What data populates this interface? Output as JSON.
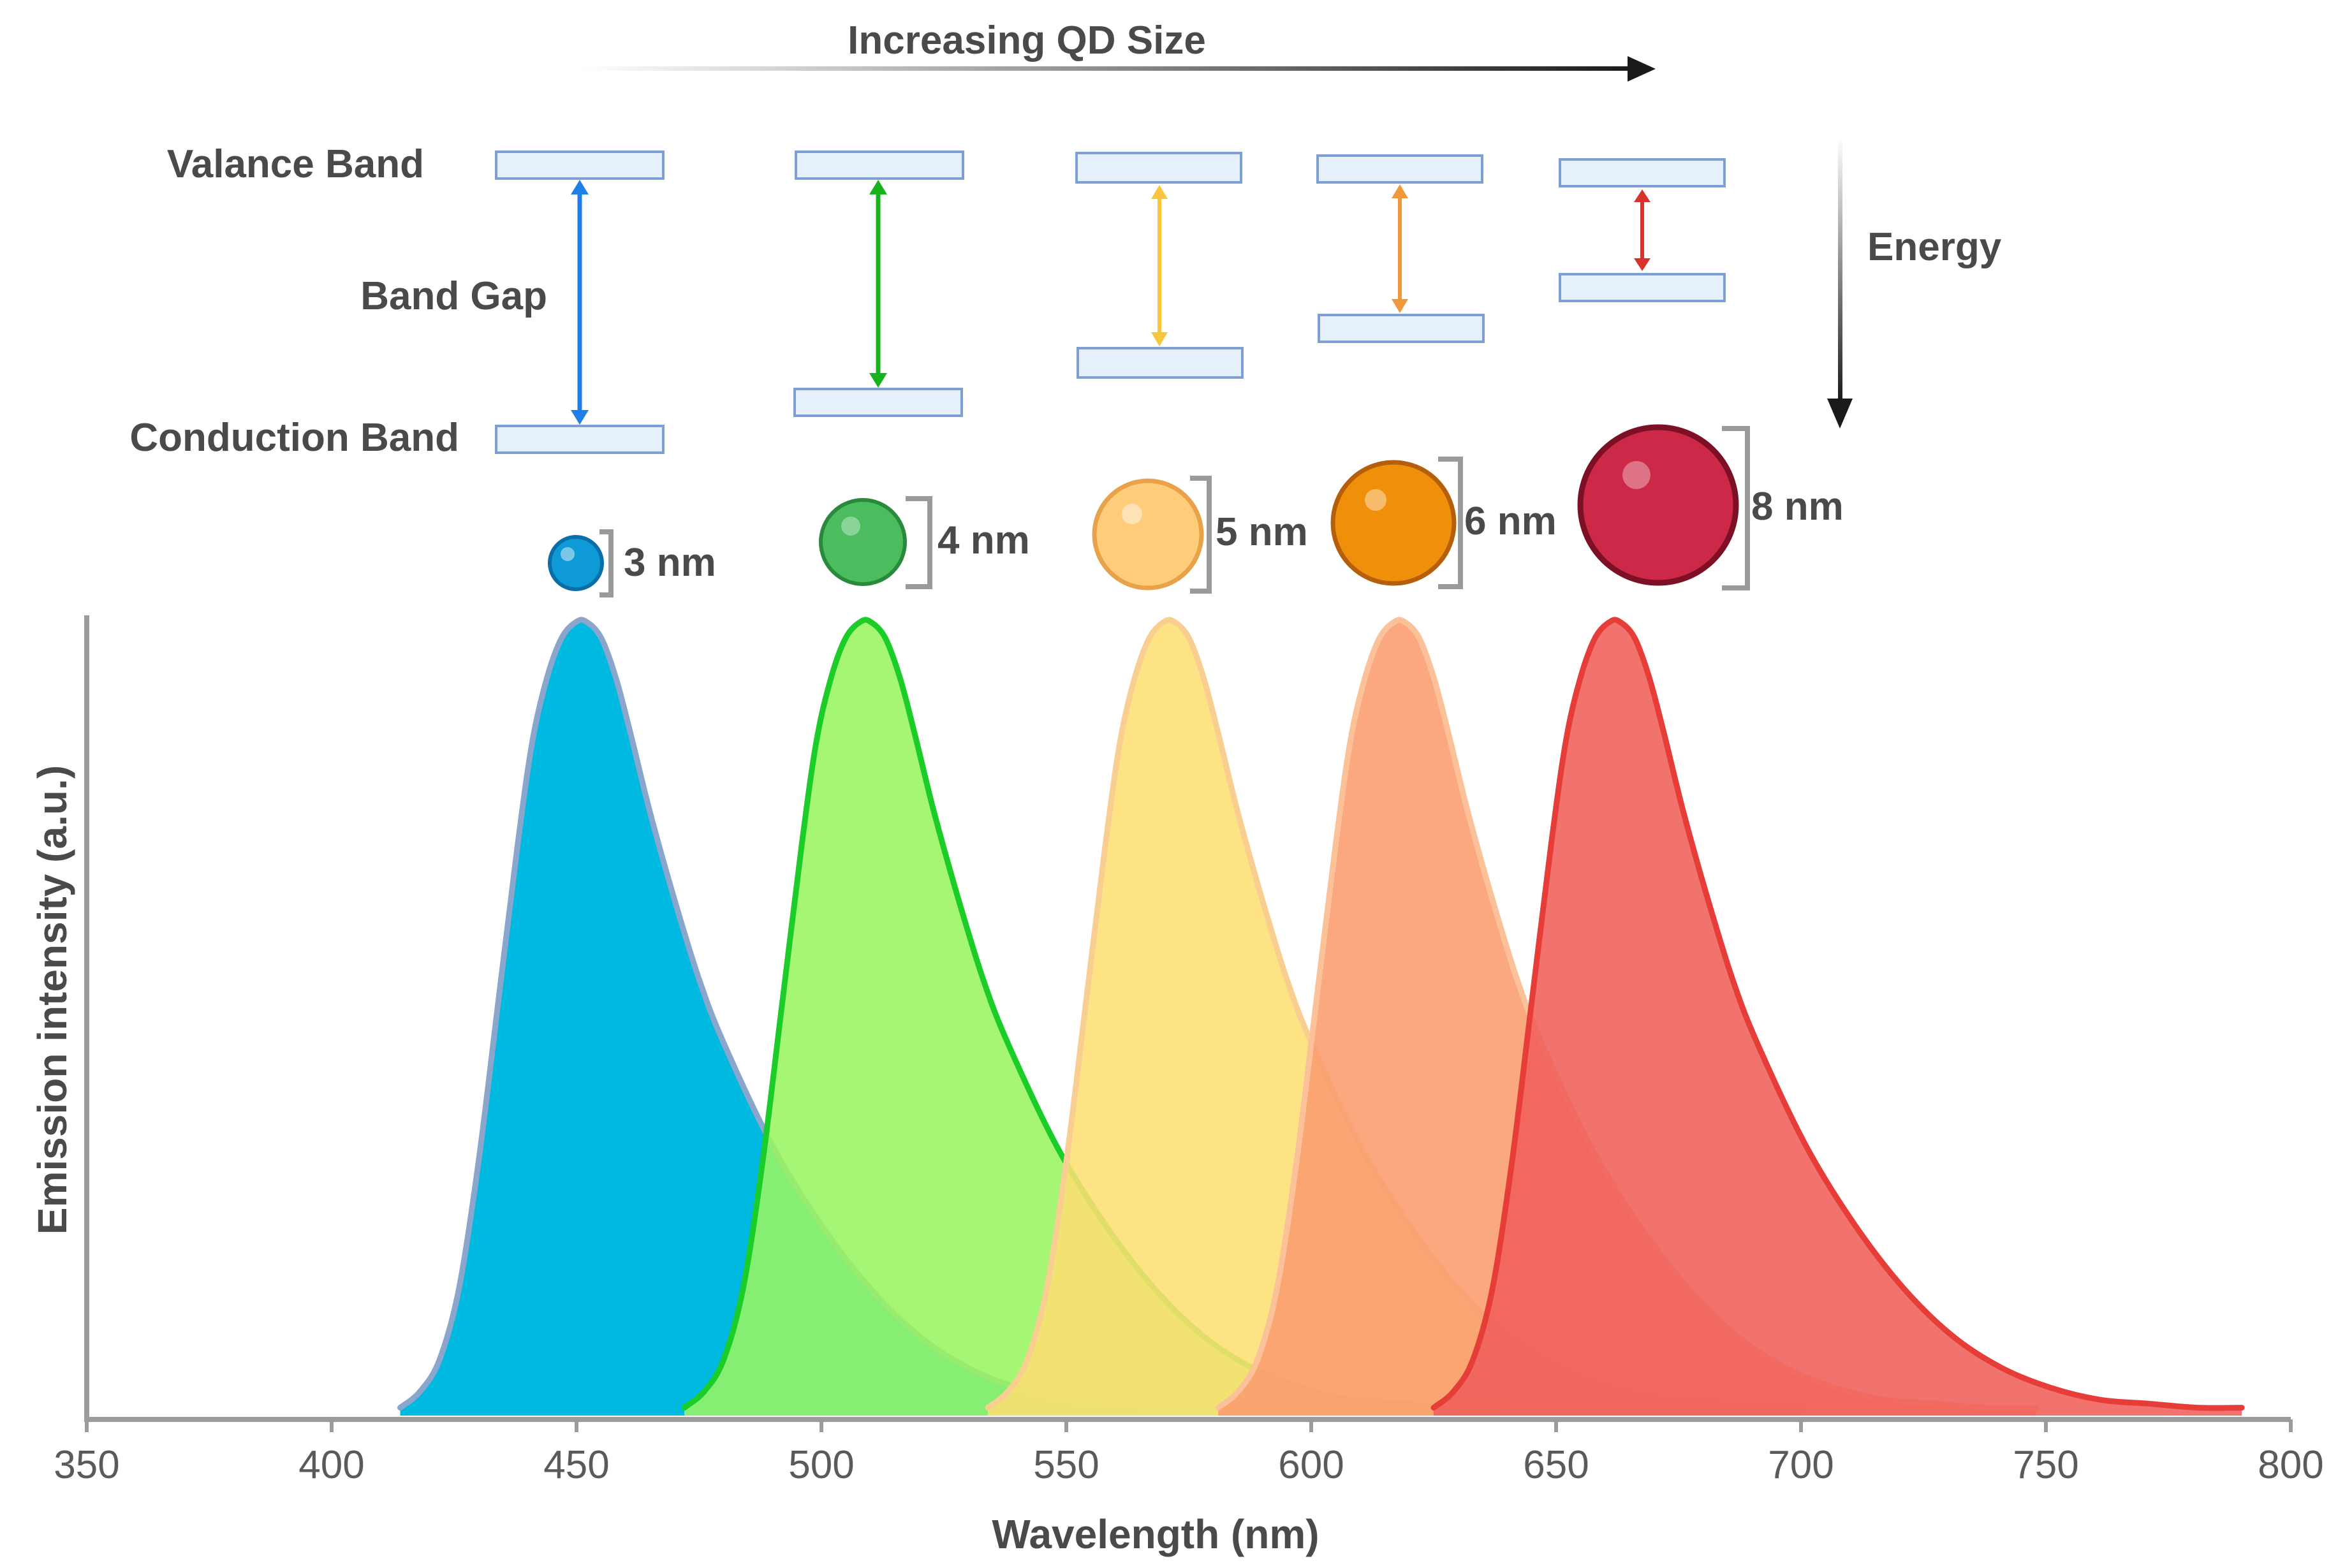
{
  "chart_data": {
    "type": "area",
    "title": "",
    "xlabel": "Wavelength (nm)",
    "ylabel": "Emission intensity (a.u.)",
    "xlim": [
      350,
      800
    ],
    "xticks": [
      350,
      400,
      450,
      500,
      550,
      600,
      650,
      700,
      750,
      800
    ],
    "xtick_labels": [
      "350",
      "400",
      "450",
      "500",
      "550",
      "600",
      "650",
      "700",
      "750",
      "800"
    ],
    "series": [
      {
        "name": "3 nm",
        "peak": 452,
        "range": [
          414,
          580
        ],
        "fill": "#00b9e0",
        "stroke": "#8aa6cc",
        "x": [
          414,
          418,
          422,
          426,
          430,
          434,
          438,
          441,
          444,
          447,
          450,
          452,
          455,
          458,
          461,
          465,
          470,
          475,
          480,
          490,
          500,
          510,
          520,
          530,
          540,
          550,
          560,
          570,
          580
        ],
        "y": [
          0.01,
          0.03,
          0.07,
          0.16,
          0.32,
          0.52,
          0.72,
          0.85,
          0.93,
          0.98,
          1.0,
          1.0,
          0.98,
          0.93,
          0.86,
          0.76,
          0.65,
          0.55,
          0.47,
          0.34,
          0.24,
          0.16,
          0.1,
          0.06,
          0.035,
          0.02,
          0.015,
          0.01,
          0.01
        ]
      },
      {
        "name": "4 nm",
        "peak": 510,
        "range": [
          472,
          640
        ],
        "fill": "#98f562",
        "stroke": "#1ccd29",
        "x": [
          472,
          476,
          480,
          484,
          488,
          492,
          496,
          499,
          502,
          505,
          508,
          510,
          513,
          516,
          519,
          523,
          528,
          533,
          538,
          548,
          558,
          568,
          578,
          588,
          598,
          608,
          620,
          630,
          640
        ],
        "y": [
          0.01,
          0.03,
          0.07,
          0.16,
          0.32,
          0.52,
          0.72,
          0.85,
          0.93,
          0.98,
          1.0,
          1.0,
          0.98,
          0.93,
          0.86,
          0.76,
          0.65,
          0.55,
          0.47,
          0.34,
          0.24,
          0.16,
          0.1,
          0.06,
          0.035,
          0.02,
          0.015,
          0.01,
          0.01
        ]
      },
      {
        "name": "5 nm",
        "peak": 572,
        "range": [
          534,
          700
        ],
        "fill": "#fddf72",
        "stroke": "#f9cf91",
        "x": [
          534,
          538,
          542,
          546,
          550,
          554,
          558,
          561,
          564,
          567,
          570,
          572,
          575,
          578,
          581,
          585,
          590,
          595,
          600,
          610,
          620,
          630,
          640,
          650,
          660,
          670,
          680,
          690,
          700
        ],
        "y": [
          0.01,
          0.03,
          0.07,
          0.16,
          0.32,
          0.52,
          0.72,
          0.85,
          0.93,
          0.98,
          1.0,
          1.0,
          0.98,
          0.93,
          0.86,
          0.76,
          0.65,
          0.55,
          0.47,
          0.34,
          0.24,
          0.16,
          0.1,
          0.06,
          0.035,
          0.02,
          0.015,
          0.01,
          0.01
        ]
      },
      {
        "name": "6 nm",
        "peak": 619,
        "range": [
          581,
          748
        ],
        "fill": "#fa9c70",
        "stroke": "#fbc29a",
        "x": [
          581,
          585,
          589,
          593,
          597,
          601,
          605,
          608,
          611,
          614,
          617,
          619,
          622,
          625,
          628,
          632,
          637,
          642,
          647,
          657,
          667,
          677,
          687,
          697,
          707,
          717,
          728,
          738,
          748
        ],
        "y": [
          0.01,
          0.03,
          0.07,
          0.16,
          0.32,
          0.52,
          0.72,
          0.85,
          0.93,
          0.98,
          1.0,
          1.0,
          0.98,
          0.93,
          0.86,
          0.76,
          0.65,
          0.55,
          0.47,
          0.34,
          0.24,
          0.16,
          0.1,
          0.06,
          0.035,
          0.02,
          0.015,
          0.01,
          0.01
        ]
      },
      {
        "name": "8 nm",
        "peak": 663,
        "range": [
          625,
          790
        ],
        "fill": "#f05f5a",
        "stroke": "#e63d38",
        "x": [
          625,
          629,
          633,
          637,
          641,
          645,
          649,
          652,
          655,
          658,
          661,
          663,
          666,
          669,
          672,
          676,
          681,
          686,
          691,
          701,
          711,
          721,
          731,
          741,
          751,
          761,
          771,
          781,
          790
        ],
        "y": [
          0.01,
          0.03,
          0.07,
          0.16,
          0.32,
          0.52,
          0.72,
          0.85,
          0.93,
          0.98,
          1.0,
          1.0,
          0.98,
          0.93,
          0.86,
          0.76,
          0.65,
          0.55,
          0.47,
          0.34,
          0.24,
          0.16,
          0.1,
          0.06,
          0.035,
          0.02,
          0.015,
          0.01,
          0.01
        ]
      }
    ]
  },
  "diagram": {
    "size_arrow_label": "Increasing QD Size",
    "energy_label": "Energy",
    "valence_label": "Valance Band",
    "gap_label": "Band Gap",
    "conduction_label": "Conduction Band",
    "gap_arrow_colors": [
      "#1f7fe6",
      "#17b31d",
      "#f9c53c",
      "#f2983c",
      "#d9322c"
    ],
    "dots": [
      {
        "label": "3 nm",
        "color": "#0d9ad6",
        "dark": "#0a6fa8"
      },
      {
        "label": "4 nm",
        "color": "#4bbd5e",
        "dark": "#2a8a3c"
      },
      {
        "label": "5 nm",
        "color": "#ffcd7a",
        "dark": "#e8a34a"
      },
      {
        "label": "6 nm",
        "color": "#f0900a",
        "dark": "#b55f0a"
      },
      {
        "label": "8 nm",
        "color": "#cc2848",
        "dark": "#7d1024"
      }
    ]
  }
}
